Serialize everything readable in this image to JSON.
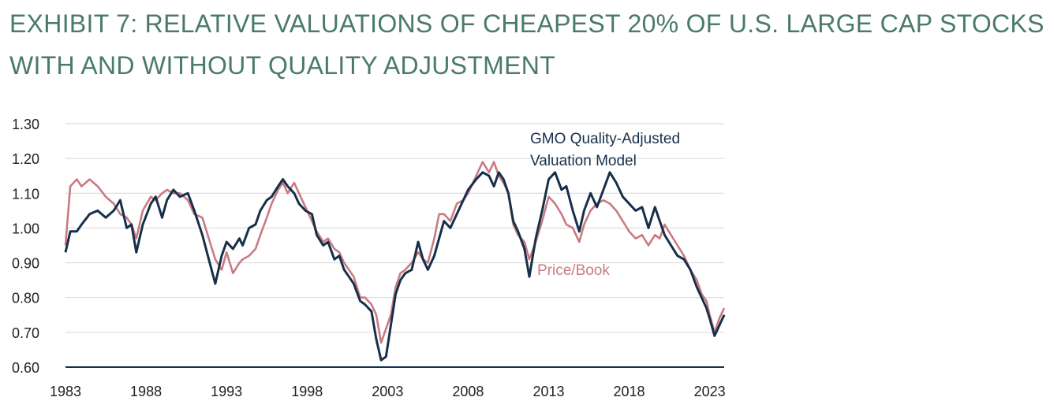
{
  "title_line1": "EXHIBIT 7: RELATIVE VALUATIONS OF CHEAPEST 20% OF U.S. LARGE CAP STOCKS",
  "title_line2": "WITH AND WITHOUT QUALITY ADJUSTMENT",
  "chart_data": {
    "type": "line",
    "title": "EXHIBIT 7: RELATIVE VALUATIONS OF CHEAPEST 20% OF U.S. LARGE CAP STOCKS WITH AND WITHOUT QUALITY ADJUSTMENT",
    "xlabel": "",
    "ylabel": "",
    "xlim": [
      1983,
      2023.9
    ],
    "ylim": [
      0.6,
      1.3
    ],
    "x_ticks": [
      "1983",
      "1988",
      "1993",
      "1998",
      "2003",
      "2008",
      "2013",
      "2018",
      "2023"
    ],
    "y_ticks": [
      "1.30",
      "1.20",
      "1.10",
      "1.00",
      "0.90",
      "0.80",
      "0.70",
      "0.60"
    ],
    "grid": true,
    "annotations": [
      {
        "text": "GMO Quality-Adjusted",
        "series": "GMO Quality-Adjusted Valuation Model"
      },
      {
        "text": "Valuation Model",
        "series": "GMO Quality-Adjusted Valuation Model"
      },
      {
        "text": "Price/Book",
        "series": "Price/Book"
      }
    ],
    "series": [
      {
        "name": "GMO Quality-Adjusted Valuation Model",
        "color": "#17304a",
        "points": [
          [
            1983.0,
            0.93
          ],
          [
            1983.3,
            0.99
          ],
          [
            1983.7,
            0.99
          ],
          [
            1984.0,
            1.01
          ],
          [
            1984.5,
            1.04
          ],
          [
            1985.0,
            1.05
          ],
          [
            1985.5,
            1.03
          ],
          [
            1986.0,
            1.05
          ],
          [
            1986.4,
            1.08
          ],
          [
            1986.8,
            1.0
          ],
          [
            1987.1,
            1.01
          ],
          [
            1987.4,
            0.93
          ],
          [
            1987.8,
            1.01
          ],
          [
            1988.3,
            1.07
          ],
          [
            1988.6,
            1.09
          ],
          [
            1989.0,
            1.03
          ],
          [
            1989.3,
            1.08
          ],
          [
            1989.7,
            1.11
          ],
          [
            1990.1,
            1.09
          ],
          [
            1990.6,
            1.1
          ],
          [
            1991.0,
            1.05
          ],
          [
            1991.5,
            0.98
          ],
          [
            1991.9,
            0.91
          ],
          [
            1992.3,
            0.84
          ],
          [
            1992.7,
            0.92
          ],
          [
            1993.0,
            0.96
          ],
          [
            1993.4,
            0.94
          ],
          [
            1993.8,
            0.97
          ],
          [
            1994.0,
            0.95
          ],
          [
            1994.4,
            1.0
          ],
          [
            1994.8,
            1.01
          ],
          [
            1995.1,
            1.05
          ],
          [
            1995.5,
            1.08
          ],
          [
            1995.8,
            1.09
          ],
          [
            1996.2,
            1.12
          ],
          [
            1996.5,
            1.14
          ],
          [
            1996.8,
            1.12
          ],
          [
            1997.2,
            1.1
          ],
          [
            1997.5,
            1.07
          ],
          [
            1997.9,
            1.05
          ],
          [
            1998.3,
            1.04
          ],
          [
            1998.6,
            0.98
          ],
          [
            1999.0,
            0.95
          ],
          [
            1999.3,
            0.96
          ],
          [
            1999.7,
            0.91
          ],
          [
            2000.0,
            0.92
          ],
          [
            2000.3,
            0.88
          ],
          [
            2000.6,
            0.86
          ],
          [
            2000.9,
            0.84
          ],
          [
            2001.3,
            0.79
          ],
          [
            2001.6,
            0.78
          ],
          [
            2002.0,
            0.76
          ],
          [
            2002.3,
            0.68
          ],
          [
            2002.6,
            0.62
          ],
          [
            2002.9,
            0.63
          ],
          [
            2003.2,
            0.72
          ],
          [
            2003.5,
            0.81
          ],
          [
            2003.8,
            0.85
          ],
          [
            2004.1,
            0.87
          ],
          [
            2004.5,
            0.88
          ],
          [
            2004.9,
            0.96
          ],
          [
            2005.2,
            0.91
          ],
          [
            2005.5,
            0.88
          ],
          [
            2005.9,
            0.92
          ],
          [
            2006.2,
            0.97
          ],
          [
            2006.5,
            1.02
          ],
          [
            2006.9,
            1.0
          ],
          [
            2007.3,
            1.04
          ],
          [
            2007.7,
            1.08
          ],
          [
            2008.0,
            1.11
          ],
          [
            2008.5,
            1.14
          ],
          [
            2008.9,
            1.16
          ],
          [
            2009.3,
            1.15
          ],
          [
            2009.6,
            1.12
          ],
          [
            2009.9,
            1.16
          ],
          [
            2010.2,
            1.14
          ],
          [
            2010.5,
            1.1
          ],
          [
            2010.8,
            1.02
          ],
          [
            2011.1,
            0.99
          ],
          [
            2011.5,
            0.94
          ],
          [
            2011.8,
            0.86
          ],
          [
            2012.2,
            0.97
          ],
          [
            2012.6,
            1.05
          ],
          [
            2013.0,
            1.14
          ],
          [
            2013.4,
            1.16
          ],
          [
            2013.8,
            1.11
          ],
          [
            2014.1,
            1.12
          ],
          [
            2014.5,
            1.05
          ],
          [
            2014.9,
            0.99
          ],
          [
            2015.2,
            1.05
          ],
          [
            2015.6,
            1.1
          ],
          [
            2016.0,
            1.06
          ],
          [
            2016.4,
            1.11
          ],
          [
            2016.8,
            1.16
          ],
          [
            2017.2,
            1.13
          ],
          [
            2017.6,
            1.09
          ],
          [
            2018.0,
            1.07
          ],
          [
            2018.4,
            1.05
          ],
          [
            2018.8,
            1.06
          ],
          [
            2019.2,
            1.0
          ],
          [
            2019.6,
            1.06
          ],
          [
            2019.9,
            1.02
          ],
          [
            2020.2,
            0.98
          ],
          [
            2020.6,
            0.95
          ],
          [
            2021.0,
            0.92
          ],
          [
            2021.4,
            0.91
          ],
          [
            2021.8,
            0.88
          ],
          [
            2022.2,
            0.83
          ],
          [
            2022.5,
            0.8
          ],
          [
            2022.8,
            0.77
          ],
          [
            2023.0,
            0.74
          ],
          [
            2023.3,
            0.69
          ],
          [
            2023.6,
            0.72
          ],
          [
            2023.9,
            0.75
          ]
        ]
      },
      {
        "name": "Price/Book",
        "color": "#c97b84",
        "points": [
          [
            1983.0,
            0.95
          ],
          [
            1983.3,
            1.12
          ],
          [
            1983.7,
            1.14
          ],
          [
            1984.0,
            1.12
          ],
          [
            1984.5,
            1.14
          ],
          [
            1985.0,
            1.12
          ],
          [
            1985.5,
            1.09
          ],
          [
            1986.0,
            1.07
          ],
          [
            1986.4,
            1.04
          ],
          [
            1986.8,
            1.03
          ],
          [
            1987.1,
            1.01
          ],
          [
            1987.4,
            0.97
          ],
          [
            1987.8,
            1.05
          ],
          [
            1988.3,
            1.09
          ],
          [
            1988.6,
            1.08
          ],
          [
            1989.0,
            1.1
          ],
          [
            1989.3,
            1.11
          ],
          [
            1989.7,
            1.1
          ],
          [
            1990.1,
            1.1
          ],
          [
            1990.6,
            1.08
          ],
          [
            1991.0,
            1.04
          ],
          [
            1991.5,
            1.03
          ],
          [
            1991.9,
            0.97
          ],
          [
            1992.3,
            0.91
          ],
          [
            1992.7,
            0.88
          ],
          [
            1993.0,
            0.93
          ],
          [
            1993.4,
            0.87
          ],
          [
            1993.8,
            0.9
          ],
          [
            1994.0,
            0.91
          ],
          [
            1994.4,
            0.92
          ],
          [
            1994.8,
            0.94
          ],
          [
            1995.1,
            0.98
          ],
          [
            1995.5,
            1.03
          ],
          [
            1995.8,
            1.07
          ],
          [
            1996.2,
            1.11
          ],
          [
            1996.5,
            1.13
          ],
          [
            1996.8,
            1.1
          ],
          [
            1997.2,
            1.13
          ],
          [
            1997.5,
            1.1
          ],
          [
            1997.9,
            1.06
          ],
          [
            1998.3,
            1.02
          ],
          [
            1998.6,
            0.99
          ],
          [
            1999.0,
            0.96
          ],
          [
            1999.3,
            0.97
          ],
          [
            1999.7,
            0.94
          ],
          [
            2000.0,
            0.93
          ],
          [
            2000.3,
            0.9
          ],
          [
            2000.6,
            0.88
          ],
          [
            2000.9,
            0.86
          ],
          [
            2001.3,
            0.8
          ],
          [
            2001.6,
            0.8
          ],
          [
            2002.0,
            0.78
          ],
          [
            2002.3,
            0.75
          ],
          [
            2002.6,
            0.67
          ],
          [
            2002.9,
            0.71
          ],
          [
            2003.2,
            0.75
          ],
          [
            2003.5,
            0.83
          ],
          [
            2003.8,
            0.87
          ],
          [
            2004.1,
            0.88
          ],
          [
            2004.5,
            0.9
          ],
          [
            2004.9,
            0.93
          ],
          [
            2005.2,
            0.91
          ],
          [
            2005.5,
            0.9
          ],
          [
            2005.9,
            0.97
          ],
          [
            2006.2,
            1.04
          ],
          [
            2006.5,
            1.04
          ],
          [
            2006.9,
            1.02
          ],
          [
            2007.3,
            1.07
          ],
          [
            2007.7,
            1.08
          ],
          [
            2008.0,
            1.1
          ],
          [
            2008.5,
            1.15
          ],
          [
            2008.9,
            1.19
          ],
          [
            2009.3,
            1.16
          ],
          [
            2009.6,
            1.19
          ],
          [
            2009.9,
            1.15
          ],
          [
            2010.2,
            1.13
          ],
          [
            2010.5,
            1.1
          ],
          [
            2010.8,
            1.01
          ],
          [
            2011.1,
            0.98
          ],
          [
            2011.5,
            0.96
          ],
          [
            2011.8,
            0.91
          ],
          [
            2012.2,
            0.96
          ],
          [
            2012.6,
            1.02
          ],
          [
            2013.0,
            1.09
          ],
          [
            2013.4,
            1.07
          ],
          [
            2013.8,
            1.04
          ],
          [
            2014.1,
            1.01
          ],
          [
            2014.5,
            1.0
          ],
          [
            2014.9,
            0.96
          ],
          [
            2015.2,
            1.01
          ],
          [
            2015.6,
            1.05
          ],
          [
            2016.0,
            1.07
          ],
          [
            2016.4,
            1.08
          ],
          [
            2016.8,
            1.07
          ],
          [
            2017.2,
            1.05
          ],
          [
            2017.6,
            1.02
          ],
          [
            2018.0,
            0.99
          ],
          [
            2018.4,
            0.97
          ],
          [
            2018.8,
            0.98
          ],
          [
            2019.2,
            0.95
          ],
          [
            2019.6,
            0.98
          ],
          [
            2019.9,
            0.97
          ],
          [
            2020.2,
            1.01
          ],
          [
            2020.6,
            0.98
          ],
          [
            2021.0,
            0.95
          ],
          [
            2021.4,
            0.92
          ],
          [
            2021.8,
            0.88
          ],
          [
            2022.2,
            0.85
          ],
          [
            2022.5,
            0.81
          ],
          [
            2022.8,
            0.79
          ],
          [
            2023.0,
            0.75
          ],
          [
            2023.3,
            0.7
          ],
          [
            2023.6,
            0.74
          ],
          [
            2023.9,
            0.77
          ]
        ]
      }
    ]
  }
}
